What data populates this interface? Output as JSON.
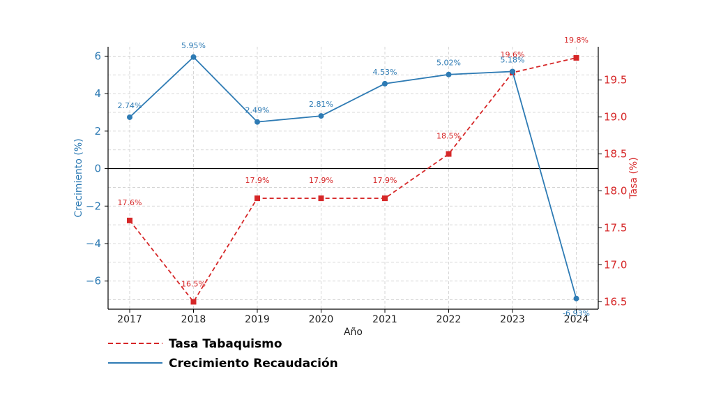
{
  "chart_data": {
    "type": "line",
    "xlabel": "Año",
    "categories": [
      "2017",
      "2018",
      "2019",
      "2020",
      "2021",
      "2022",
      "2023",
      "2024"
    ],
    "y_left": {
      "label": "Crecimiento (%)",
      "ylim": [
        -7.5,
        6.5
      ],
      "ticks": [
        -6,
        -4,
        -2,
        0,
        2,
        4,
        6
      ],
      "tick_labels": [
        "−6",
        "−4",
        "−2",
        "0",
        "2",
        "4",
        "6"
      ],
      "color": "#2e7bb4"
    },
    "y_right": {
      "label": "Tasa (%)",
      "ylim": [
        16.4,
        19.95
      ],
      "ticks": [
        16.5,
        17.0,
        17.5,
        18.0,
        18.5,
        19.0,
        19.5
      ],
      "tick_labels": [
        "16.5",
        "17.0",
        "17.5",
        "18.0",
        "18.5",
        "19.0",
        "19.5"
      ],
      "color": "#d62728"
    },
    "grid": true,
    "series": [
      {
        "name": "Crecimiento Recaudación",
        "axis": "left",
        "style": "solid",
        "marker": "circle",
        "color": "#2e7bb4",
        "values": [
          2.74,
          5.95,
          2.49,
          2.81,
          4.53,
          5.02,
          5.18,
          -6.93
        ],
        "labels": [
          "2.74%",
          "5.95%",
          "2.49%",
          "2.81%",
          "4.53%",
          "5.02%",
          "5.18%",
          "-6.93%"
        ]
      },
      {
        "name": "Tasa Tabaquismo",
        "axis": "right",
        "style": "dashed",
        "marker": "square",
        "color": "#d62728",
        "values": [
          17.6,
          16.5,
          17.9,
          17.9,
          17.9,
          18.5,
          19.6,
          19.8
        ],
        "labels": [
          "17.6%",
          "16.5%",
          "17.9%",
          "17.9%",
          "17.9%",
          "18.5%",
          "19.6%",
          "19.8%"
        ]
      }
    ],
    "legend": {
      "placement": "bottom-left",
      "order": [
        "Tasa Tabaquismo",
        "Crecimiento Recaudación"
      ]
    }
  }
}
